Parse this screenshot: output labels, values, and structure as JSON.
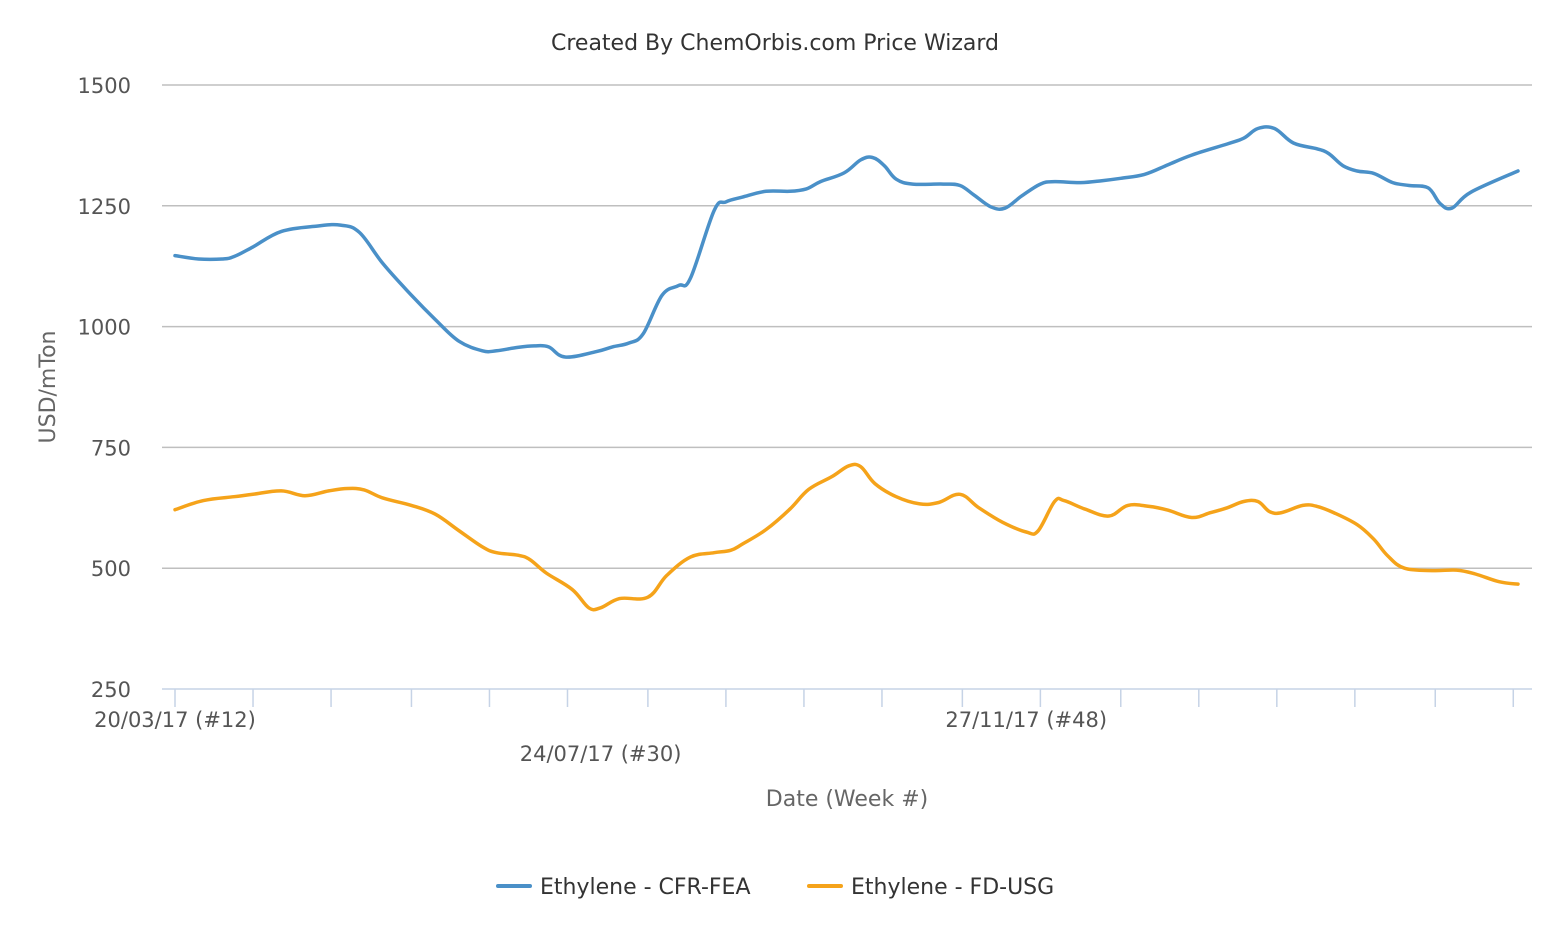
{
  "chart_data": {
    "type": "line",
    "title": "Created By ChemOrbis.com Price Wizard",
    "xlabel": "Date (Week #)",
    "ylabel": "USD/mTon",
    "ylim": [
      250,
      1500
    ],
    "yticks": [
      1500,
      1250,
      1000,
      750,
      500,
      250
    ],
    "x_tick_labels": [
      {
        "label": "20/03/17 (#12)",
        "week_index": 0,
        "row": 1
      },
      {
        "label": "24/07/17 (#30)",
        "week_index": 18,
        "row": 2
      },
      {
        "label": "27/11/17 (#48)",
        "week_index": 36,
        "row": 1
      }
    ],
    "x_tick_mark_week_indices": [
      0,
      3.3,
      6.6,
      10,
      13.3,
      16.6,
      20,
      23.3,
      26.6,
      29.9,
      33.3,
      36.6,
      40,
      43.3,
      46.6,
      49.9,
      53.3,
      56.6
    ],
    "x_max_week_index": 56.8,
    "legend_position": "bottom-center",
    "grid": true,
    "series": [
      {
        "name": "Ethylene - CFR-FEA",
        "color": "#4a90c8",
        "points": [
          [
            0,
            1147
          ],
          [
            1,
            1140
          ],
          [
            2,
            1140
          ],
          [
            2.5,
            1145
          ],
          [
            3.3,
            1165
          ],
          [
            4.5,
            1197
          ],
          [
            6,
            1208
          ],
          [
            7,
            1210
          ],
          [
            7.8,
            1195
          ],
          [
            8.8,
            1130
          ],
          [
            10,
            1065
          ],
          [
            11,
            1015
          ],
          [
            12,
            970
          ],
          [
            13,
            950
          ],
          [
            13.6,
            950
          ],
          [
            14.5,
            957
          ],
          [
            15.2,
            960
          ],
          [
            15.8,
            958
          ],
          [
            16.5,
            937
          ],
          [
            17.8,
            948
          ],
          [
            18.5,
            958
          ],
          [
            19.2,
            966
          ],
          [
            19.8,
            985
          ],
          [
            20.6,
            1065
          ],
          [
            21.3,
            1085
          ],
          [
            21.8,
            1100
          ],
          [
            22.8,
            1240
          ],
          [
            23.3,
            1258
          ],
          [
            24,
            1268
          ],
          [
            25,
            1280
          ],
          [
            26,
            1280
          ],
          [
            26.7,
            1285
          ],
          [
            27.3,
            1300
          ],
          [
            28.3,
            1318
          ],
          [
            29,
            1345
          ],
          [
            29.5,
            1350
          ],
          [
            30,
            1333
          ],
          [
            30.5,
            1305
          ],
          [
            31.2,
            1295
          ],
          [
            32.5,
            1295
          ],
          [
            33.2,
            1292
          ],
          [
            33.8,
            1272
          ],
          [
            34.5,
            1248
          ],
          [
            35.1,
            1245
          ],
          [
            35.8,
            1270
          ],
          [
            36.6,
            1295
          ],
          [
            37.2,
            1300
          ],
          [
            38.3,
            1298
          ],
          [
            39.2,
            1302
          ],
          [
            40,
            1307
          ],
          [
            41,
            1315
          ],
          [
            42,
            1335
          ],
          [
            43,
            1355
          ],
          [
            44.5,
            1378
          ],
          [
            45.2,
            1390
          ],
          [
            45.8,
            1410
          ],
          [
            46.5,
            1410
          ],
          [
            47.3,
            1380
          ],
          [
            48.3,
            1368
          ],
          [
            48.8,
            1358
          ],
          [
            49.4,
            1333
          ],
          [
            50,
            1322
          ],
          [
            50.7,
            1317
          ],
          [
            51.5,
            1298
          ],
          [
            52.2,
            1292
          ],
          [
            53,
            1287
          ],
          [
            53.5,
            1255
          ],
          [
            54,
            1245
          ],
          [
            54.8,
            1278
          ],
          [
            56.8,
            1322
          ]
        ]
      },
      {
        "name": "Ethylene - FD-USG",
        "color": "#f5a31a",
        "points": [
          [
            0,
            621
          ],
          [
            1.2,
            640
          ],
          [
            2.5,
            648
          ],
          [
            3.3,
            653
          ],
          [
            4.5,
            660
          ],
          [
            5.5,
            650
          ],
          [
            6.5,
            660
          ],
          [
            7.3,
            665
          ],
          [
            8,
            662
          ],
          [
            8.8,
            645
          ],
          [
            10,
            630
          ],
          [
            11,
            612
          ],
          [
            12,
            578
          ],
          [
            13,
            544
          ],
          [
            13.6,
            532
          ],
          [
            14.5,
            527
          ],
          [
            15,
            518
          ],
          [
            15.7,
            490
          ],
          [
            16.8,
            456
          ],
          [
            17.5,
            418
          ],
          [
            18,
            418
          ],
          [
            18.8,
            437
          ],
          [
            20,
            440
          ],
          [
            20.8,
            485
          ],
          [
            21.8,
            523
          ],
          [
            22.8,
            532
          ],
          [
            23.5,
            537
          ],
          [
            24,
            550
          ],
          [
            25,
            580
          ],
          [
            26,
            622
          ],
          [
            26.8,
            663
          ],
          [
            27.8,
            690
          ],
          [
            28.5,
            712
          ],
          [
            29,
            710
          ],
          [
            29.6,
            675
          ],
          [
            30.5,
            648
          ],
          [
            31.5,
            633
          ],
          [
            32.3,
            636
          ],
          [
            33.2,
            653
          ],
          [
            34,
            625
          ],
          [
            35,
            595
          ],
          [
            36,
            575
          ],
          [
            36.5,
            577
          ],
          [
            37.2,
            638
          ],
          [
            37.6,
            640
          ],
          [
            38.5,
            622
          ],
          [
            39.5,
            608
          ],
          [
            40.3,
            630
          ],
          [
            41.2,
            628
          ],
          [
            42,
            620
          ],
          [
            43,
            605
          ],
          [
            43.8,
            615
          ],
          [
            44.5,
            625
          ],
          [
            45.2,
            638
          ],
          [
            45.8,
            638
          ],
          [
            46.3,
            617
          ],
          [
            46.8,
            615
          ],
          [
            47.7,
            630
          ],
          [
            48.3,
            628
          ],
          [
            49,
            615
          ],
          [
            50,
            590
          ],
          [
            50.7,
            560
          ],
          [
            51.3,
            525
          ],
          [
            52,
            500
          ],
          [
            53.2,
            495
          ],
          [
            54.2,
            496
          ],
          [
            55,
            488
          ],
          [
            56,
            472
          ],
          [
            56.8,
            467
          ]
        ]
      }
    ]
  }
}
